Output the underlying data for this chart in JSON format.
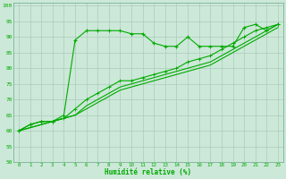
{
  "xlabel": "Humidité relative (%)",
  "bg_color": "#cce8d8",
  "grid_color": "#aaccbb",
  "line_color": "#00aa00",
  "xlim": [
    -0.5,
    23.5
  ],
  "ylim": [
    50,
    101
  ],
  "yticks": [
    50,
    55,
    60,
    65,
    70,
    75,
    80,
    85,
    90,
    95,
    100
  ],
  "xticks": [
    0,
    1,
    2,
    3,
    4,
    5,
    6,
    7,
    8,
    9,
    10,
    11,
    12,
    13,
    14,
    15,
    16,
    17,
    18,
    19,
    20,
    21,
    22,
    23
  ],
  "series1_x": [
    0,
    1,
    2,
    3,
    4,
    5,
    6,
    7,
    8,
    9,
    10,
    11,
    12,
    13,
    14,
    15,
    16,
    17,
    18,
    19,
    20,
    21,
    22,
    23
  ],
  "series1_y": [
    60,
    62,
    63,
    63,
    65,
    89,
    92,
    92,
    92,
    92,
    91,
    91,
    88,
    87,
    87,
    90,
    87,
    87,
    87,
    87,
    93,
    94,
    92,
    94
  ],
  "series2_x": [
    0,
    1,
    2,
    3,
    4,
    5,
    6,
    7,
    8,
    9,
    10,
    11,
    12,
    13,
    14,
    15,
    16,
    17,
    18,
    19,
    20,
    21,
    22,
    23
  ],
  "series2_y": [
    60,
    62,
    63,
    63,
    64,
    67,
    70,
    72,
    74,
    76,
    76,
    77,
    78,
    79,
    80,
    82,
    83,
    84,
    86,
    88,
    90,
    92,
    93,
    94
  ],
  "series3_x": [
    0,
    1,
    2,
    3,
    4,
    5,
    6,
    7,
    8,
    9,
    10,
    11,
    12,
    13,
    14,
    15,
    16,
    17,
    18,
    19,
    20,
    21,
    22,
    23
  ],
  "series3_y": [
    60,
    61,
    62,
    63,
    64,
    65,
    68,
    70,
    72,
    74,
    75,
    76,
    77,
    78,
    79,
    80,
    81,
    82,
    84,
    86,
    88,
    90,
    92,
    94
  ],
  "series4_x": [
    0,
    1,
    2,
    3,
    4,
    5,
    6,
    7,
    8,
    9,
    10,
    11,
    12,
    13,
    14,
    15,
    16,
    17,
    18,
    19,
    20,
    21,
    22,
    23
  ],
  "series4_y": [
    60,
    61,
    62,
    63,
    64,
    65,
    67,
    69,
    71,
    73,
    74,
    75,
    76,
    77,
    78,
    79,
    80,
    81,
    83,
    85,
    87,
    89,
    91,
    93
  ]
}
